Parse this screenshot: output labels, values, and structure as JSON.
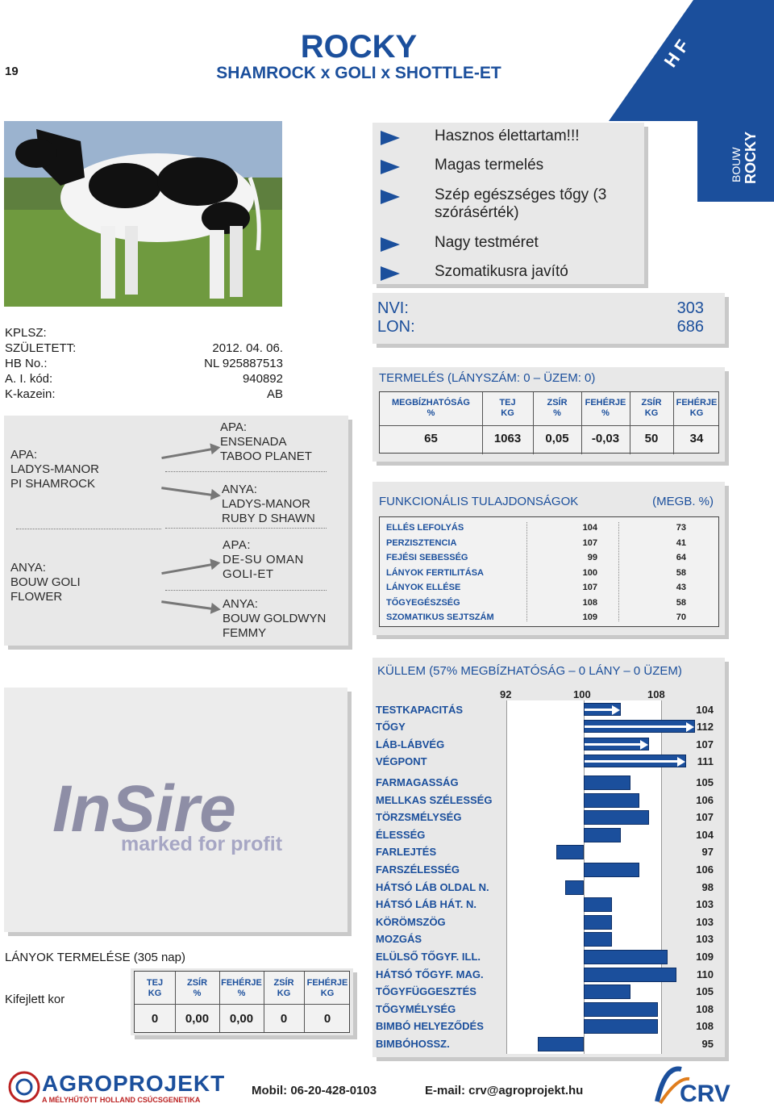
{
  "page_number": "19",
  "title": "ROCKY",
  "subtitle": "SHAMROCK x GOLI x SHOTTLE-ET",
  "corner_label": "H F",
  "side_tab": {
    "small": "BOUW",
    "big": "ROCKY"
  },
  "bullets": [
    "Hasznos élettartam!!!",
    "Magas termelés",
    "Szép egészséges tőgy (3 szórásérték)",
    "Nagy testméret",
    "Szomatikusra javító"
  ],
  "indices": [
    {
      "label": "NVI:",
      "value": "303"
    },
    {
      "label": "LON:",
      "value": "686"
    }
  ],
  "info": [
    {
      "label": "KPLSZ:",
      "value": ""
    },
    {
      "label": "SZÜLETETT:",
      "value": "2012. 04. 06."
    },
    {
      "label": "HB No.:",
      "value": "NL 925887513"
    },
    {
      "label": "A. I. kód:",
      "value": "940892"
    },
    {
      "label": "K-kazein:",
      "value": "AB"
    }
  ],
  "pedigree": {
    "sire": [
      "APA:",
      "LADYS-MANOR",
      "PI SHAMROCK"
    ],
    "dam": [
      "ANYA:",
      "BOUW GOLI",
      "FLOWER"
    ],
    "sire_sire": [
      "APA:",
      "ENSENADA",
      "TABOO PLANET"
    ],
    "sire_dam": [
      "ANYA:",
      "LADYS-MANOR",
      "RUBY D SHAWN"
    ],
    "dam_sire": [
      "APA:",
      "DE-SU OMAN",
      "GOLI-ET"
    ],
    "dam_dam": [
      "ANYA:",
      "BOUW GOLDWYN",
      "FEMMY"
    ]
  },
  "production": {
    "header": "TERMELÉS (LÁNYSZÁM: 0 – ÜZEM: 0)",
    "columns": [
      {
        "h1": "MEGBÍZHATÓSÁG",
        "h2": "%",
        "value": "65"
      },
      {
        "h1": "TEJ",
        "h2": "KG",
        "value": "1063"
      },
      {
        "h1": "ZSÍR",
        "h2": "%",
        "value": "0,05"
      },
      {
        "h1": "FEHÉRJE",
        "h2": "%",
        "value": "-0,03"
      },
      {
        "h1": "ZSÍR",
        "h2": "KG",
        "value": "50"
      },
      {
        "h1": "FEHÉRJE",
        "h2": "KG",
        "value": "34"
      }
    ]
  },
  "functional": {
    "header": "FUNKCIONÁLIS TULAJDONSÁGOK",
    "header_right": "(MEGB. %)",
    "rows": [
      {
        "name": "ELLÉS LEFOLYÁS",
        "value": "104",
        "rel": "73"
      },
      {
        "name": "PERZISZTENCIA",
        "value": "107",
        "rel": "41"
      },
      {
        "name": "FEJÉSI SEBESSÉG",
        "value": "99",
        "rel": "64"
      },
      {
        "name": "LÁNYOK FERTILITÁSA",
        "value": "100",
        "rel": "58"
      },
      {
        "name": "LÁNYOK ELLÉSE",
        "value": "107",
        "rel": "43"
      },
      {
        "name": "TŐGYEGÉSZSÉG",
        "value": "108",
        "rel": "58"
      },
      {
        "name": "SZOMATIKUS SEJTSZÁM",
        "value": "109",
        "rel": "70"
      }
    ]
  },
  "insire": {
    "logo": "InSire",
    "tagline": "marked for profit"
  },
  "daughters": {
    "header": "LÁNYOK TERMELÉSE (305 nap)",
    "row_label": "Kifejlett kor",
    "columns": [
      {
        "h1": "TEJ",
        "h2": "KG",
        "value": "0"
      },
      {
        "h1": "ZSÍR",
        "h2": "%",
        "value": "0,00"
      },
      {
        "h1": "FEHÉRJE",
        "h2": "%",
        "value": "0,00"
      },
      {
        "h1": "ZSÍR",
        "h2": "KG",
        "value": "0"
      },
      {
        "h1": "FEHÉRJE",
        "h2": "KG",
        "value": "0"
      }
    ]
  },
  "conformation": {
    "header": "KÜLLEM (57% MEGBÍZHATÓSÁG – 0 LÁNY – 0 ÜZEM)",
    "scale": [
      "92",
      "100",
      "108"
    ],
    "composite": [
      {
        "name": "TESTKAPACITÁS",
        "value": 104
      },
      {
        "name": "TŐGY",
        "value": 112
      },
      {
        "name": "LÁB-LÁBVÉG",
        "value": 107
      },
      {
        "name": "VÉGPONT",
        "value": 111
      }
    ],
    "linear": [
      {
        "name": "FARMAGASSÁG",
        "value": 105
      },
      {
        "name": "MELLKAS SZÉLESSÉG",
        "value": 106
      },
      {
        "name": "TÖRZSMÉLYSÉG",
        "value": 107
      },
      {
        "name": "ÉLESSÉG",
        "value": 104
      },
      {
        "name": "FARLEJTÉS",
        "value": 97
      },
      {
        "name": "FARSZÉLESSÉG",
        "value": 106
      },
      {
        "name": "HÁTSÓ LÁB OLDAL N.",
        "value": 98
      },
      {
        "name": "HÁTSÓ LÁB HÁT. N.",
        "value": 103
      },
      {
        "name": "KÖRÖMSZÖG",
        "value": 103
      },
      {
        "name": "MOZGÁS",
        "value": 103
      },
      {
        "name": "ELÜLSŐ TŐGYF. ILL.",
        "value": 109
      },
      {
        "name": "HÁTSÓ TŐGYF. MAG.",
        "value": 110
      },
      {
        "name": "TŐGYFÜGGESZTÉS",
        "value": 105
      },
      {
        "name": "TŐGYMÉLYSÉG",
        "value": 108
      },
      {
        "name": "BIMBÓ HELYEZŐDÉS",
        "value": 108
      },
      {
        "name": "BIMBÓHOSSZ.",
        "value": 95
      }
    ]
  },
  "footer": {
    "brand": "AGROPROJEKT",
    "brand_sub": "A MÉLYHŰTÖTT HOLLAND CSÚCSGENETIKA",
    "mobile": "Mobil: 06-20-428-0103",
    "email": "E-mail: crv@agroprojekt.hu",
    "crv": "CRV"
  },
  "colors": {
    "accent": "#1b4f9c",
    "panel": "#e8e8e8"
  }
}
